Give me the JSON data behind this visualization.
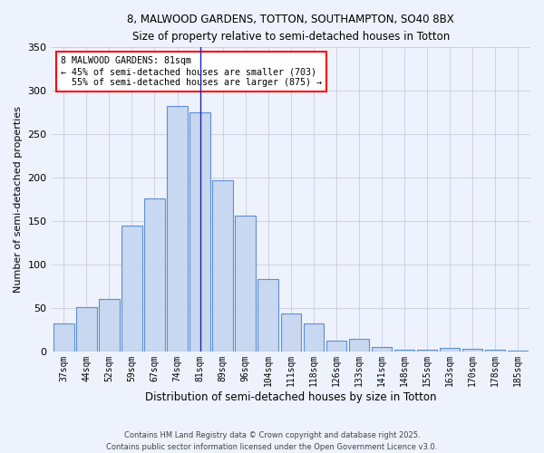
{
  "title_line1": "8, MALWOOD GARDENS, TOTTON, SOUTHAMPTON, SO40 8BX",
  "title_line2": "Size of property relative to semi-detached houses in Totton",
  "xlabel": "Distribution of semi-detached houses by size in Totton",
  "ylabel": "Number of semi-detached properties",
  "categories": [
    "37sqm",
    "44sqm",
    "52sqm",
    "59sqm",
    "67sqm",
    "74sqm",
    "81sqm",
    "89sqm",
    "96sqm",
    "104sqm",
    "111sqm",
    "118sqm",
    "126sqm",
    "133sqm",
    "141sqm",
    "148sqm",
    "155sqm",
    "163sqm",
    "170sqm",
    "178sqm",
    "185sqm"
  ],
  "bar_heights": [
    33,
    51,
    61,
    145,
    176,
    283,
    275,
    197,
    157,
    84,
    44,
    33,
    13,
    15,
    6,
    3,
    2,
    5,
    4,
    2,
    1
  ],
  "highlight_index": 5,
  "property_size": 81,
  "pct_smaller": 45,
  "pct_larger": 55,
  "n_smaller": 703,
  "n_larger": 875,
  "annotation_label": "8 MALWOOD GARDENS: 81sqm",
  "bar_color": "#c8d8f0",
  "bar_edge_color": "#5b8fd4",
  "highlight_line_color": "#2222aa",
  "background_color": "#eef2fc",
  "grid_color": "#c8cce0",
  "footer_text": "Contains HM Land Registry data © Crown copyright and database right 2025.\nContains public sector information licensed under the Open Government Licence v3.0.",
  "ylim": [
    0,
    350
  ],
  "yticks": [
    0,
    50,
    100,
    150,
    200,
    250,
    300,
    350
  ]
}
